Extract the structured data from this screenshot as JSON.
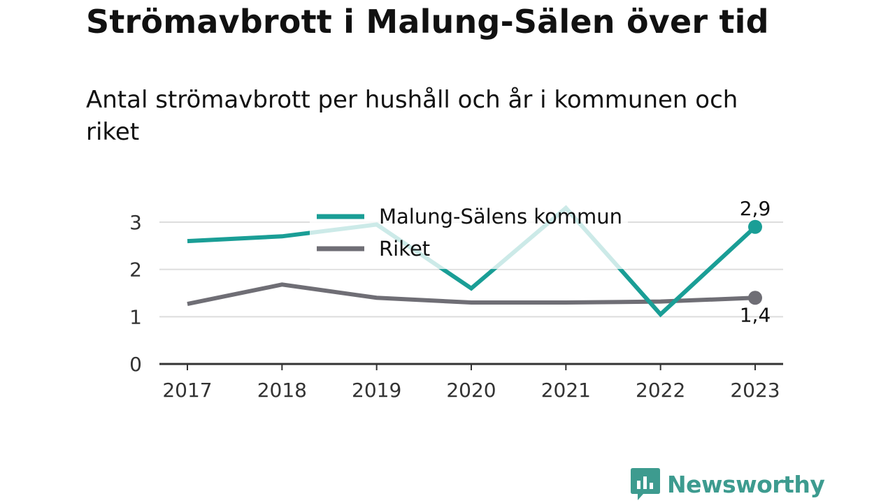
{
  "title": "Strömavbrott i Malung-Sälen över tid",
  "subtitle": "Antal strömavbrott per hushåll och år i kommunen och riket",
  "brand": "Newsworthy",
  "colors": {
    "kommun": "#1a9e96",
    "riket": "#6f6e75",
    "grid": "#dddddd",
    "axis": "#333333",
    "brand": "#3d9b8f"
  },
  "chart_data": {
    "type": "line",
    "categories": [
      "2017",
      "2018",
      "2019",
      "2020",
      "2021",
      "2022",
      "2023"
    ],
    "ylim": [
      0,
      3
    ],
    "yticks": [
      "0",
      "1",
      "2",
      "3"
    ],
    "legend_position": "top-center",
    "grid": true,
    "series": [
      {
        "name": "Malung-Sälens kommun",
        "values": [
          2.6,
          2.7,
          2.95,
          1.6,
          3.3,
          1.05,
          2.9
        ],
        "end_label": "2,9"
      },
      {
        "name": "Riket",
        "values": [
          1.27,
          1.68,
          1.4,
          1.3,
          1.3,
          1.32,
          1.4
        ],
        "end_label": "1,4"
      }
    ]
  }
}
